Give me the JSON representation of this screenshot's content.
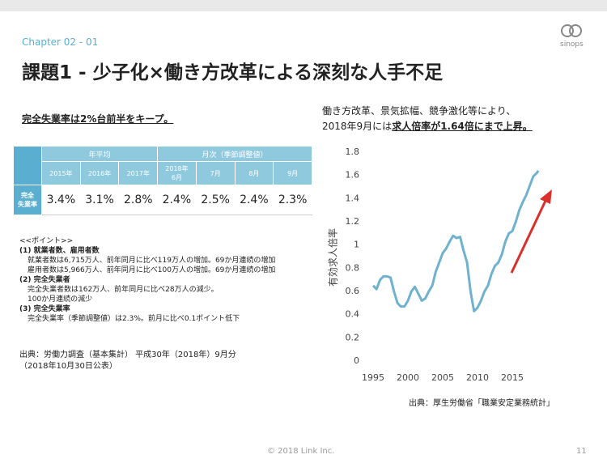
{
  "header": {
    "chapter": "Chapter 02 - 01",
    "title": "課題1 - 少子化×働き方改革による深刻な人手不足",
    "logo": "sinops"
  },
  "left_heading": "完全失業率は2%台前半をキープ。",
  "table": {
    "group_headers": [
      "年平均",
      "月次（季節調整値）"
    ],
    "columns": [
      "2015年",
      "2016年",
      "2017年",
      "2018年\n6月",
      "7月",
      "8月",
      "9月"
    ],
    "row_label": "完全\n失業率",
    "values": [
      "3.4%",
      "3.1%",
      "2.8%",
      "2.4%",
      "2.5%",
      "2.4%",
      "2.3%"
    ]
  },
  "notes": [
    "<<ポイント>>",
    "(1) 就業者数、雇用者数",
    "就業者数は6,715万人、前年同月に比べ119万人の増加。69か月連続の増加",
    "雇用者数は5,966万人、前年同月に比べ100万人の増加。69か月連続の増加",
    "(2) 完全失業者",
    "完全失業者数は162万人、前年同月に比べ28万人の減少。",
    "100か月連続の減少",
    "(3) 完全失業率",
    "完全失業率（季節調整値）は2.3%。前月に比べ0.1ポイント低下"
  ],
  "source_left": [
    "出典：労働力調査（基本集計） 平成30年（2018年）9月分",
    "（2018年10月30日公表）"
  ],
  "right_caption": {
    "line1": "働き方改革、景気拡幅、競争激化等により、",
    "line2_plain": "2018年9月には",
    "line2_bold": "求人倍率が1.64倍にまで上昇。"
  },
  "chart_data": {
    "type": "line",
    "y_label": "有効求人倍率",
    "x": [
      1995,
      1995.5,
      1996,
      1996.5,
      1997,
      1997.5,
      1998,
      1998.5,
      1999,
      1999.5,
      2000,
      2000.5,
      2001,
      2001.5,
      2002,
      2002.5,
      2003,
      2003.5,
      2004,
      2004.5,
      2005,
      2005.5,
      2006,
      2006.5,
      2007,
      2007.5,
      2008,
      2008.5,
      2009,
      2009.5,
      2010,
      2010.5,
      2011,
      2011.5,
      2012,
      2012.5,
      2013,
      2013.5,
      2014,
      2014.5,
      2015,
      2015.5,
      2016,
      2016.5,
      2017,
      2017.5,
      2018,
      2018.5,
      2018.75
    ],
    "values": [
      0.65,
      0.62,
      0.7,
      0.73,
      0.73,
      0.72,
      0.6,
      0.5,
      0.47,
      0.47,
      0.52,
      0.6,
      0.64,
      0.58,
      0.52,
      0.54,
      0.6,
      0.65,
      0.77,
      0.85,
      0.93,
      0.97,
      1.03,
      1.08,
      1.06,
      1.07,
      0.95,
      0.85,
      0.6,
      0.43,
      0.46,
      0.52,
      0.6,
      0.65,
      0.75,
      0.82,
      0.85,
      0.92,
      1.03,
      1.1,
      1.12,
      1.2,
      1.3,
      1.37,
      1.43,
      1.51,
      1.59,
      1.62,
      1.64
    ],
    "color": "#6fb1cf",
    "xlim": [
      1995,
      2019
    ],
    "xticks": [
      1995,
      2000,
      2005,
      2010,
      2015
    ],
    "ylim": [
      0,
      1.8
    ],
    "yticks": [
      0,
      0.2,
      0.4,
      0.6,
      0.8,
      1,
      1.2,
      1.4,
      1.6,
      1.8
    ]
  },
  "chart_source": "出典：厚生労働省「職業安定業務統計」",
  "footer": {
    "copyright": "© 2018 Link Inc.",
    "page": "11"
  }
}
